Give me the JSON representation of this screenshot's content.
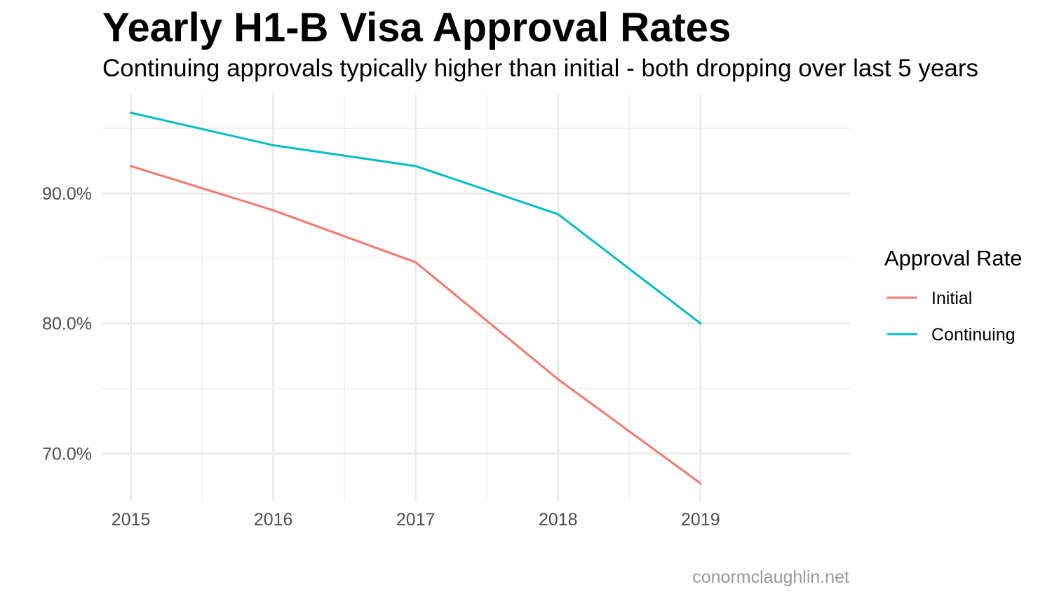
{
  "chart_data": {
    "type": "line",
    "title": "Yearly H1-B Visa Approval Rates",
    "subtitle": "Continuing approvals typically higher than initial - both dropping over last 5 years",
    "caption": "conormclaughlin.net",
    "xlabel": "",
    "ylabel": "",
    "x": [
      2015,
      2016,
      2017,
      2018,
      2019
    ],
    "x_tick_labels": [
      "2015",
      "2016",
      "2017",
      "2018",
      "2019"
    ],
    "y_ticks": [
      70,
      80,
      90
    ],
    "y_tick_labels": [
      "70.0%",
      "80.0%",
      "90.0%"
    ],
    "xlim": [
      2014.8,
      2020.05
    ],
    "ylim": [
      66.3,
      97.6
    ],
    "grid": true,
    "legend": {
      "title": "Approval Rate",
      "position": "right"
    },
    "series": [
      {
        "name": "Initial",
        "color": "#F8766D",
        "values": [
          92.1,
          88.7,
          84.7,
          75.7,
          67.7
        ]
      },
      {
        "name": "Continuing",
        "color": "#00BFC4",
        "values": [
          96.2,
          93.7,
          92.1,
          88.4,
          80.0
        ]
      }
    ]
  }
}
